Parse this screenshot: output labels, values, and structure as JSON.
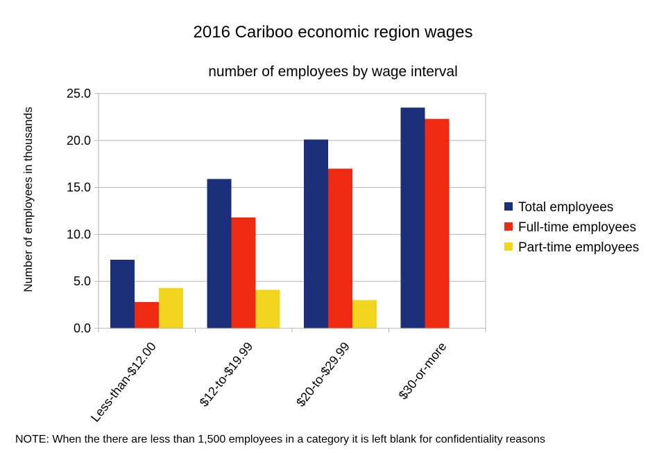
{
  "chart_data": {
    "type": "bar",
    "title": "2016 Cariboo economic region wages",
    "subtitle": "number of employees by wage interval",
    "ylabel": "Number of employees in thousands",
    "xlabel": "",
    "ylim": [
      0,
      25
    ],
    "yticks": [
      "0.0",
      "5.0",
      "10.0",
      "15.0",
      "20.0",
      "25.0"
    ],
    "grid": true,
    "legend_position": "right",
    "categories": [
      "Less-than-$12.00",
      "$12-to-$19.99",
      "$20-to-$29.99",
      "$30-or-more"
    ],
    "series": [
      {
        "name": "Total employees",
        "color": "#1b2f7a",
        "values": [
          7.3,
          15.9,
          20.1,
          23.5
        ]
      },
      {
        "name": "Full-time employees",
        "color": "#ee2a12",
        "values": [
          2.8,
          11.8,
          17.0,
          22.3
        ]
      },
      {
        "name": "Part-time employees",
        "color": "#f2d51f",
        "values": [
          4.3,
          4.1,
          3.0,
          null
        ]
      }
    ]
  },
  "note": "NOTE: When the there are less than 1,500 employees in a category it is left blank for confidentiality reasons"
}
